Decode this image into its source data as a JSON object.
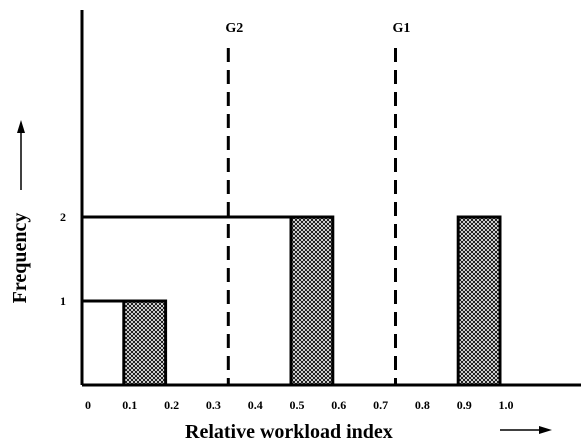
{
  "chart_data": {
    "type": "bar",
    "xlabel": "Relative workload index",
    "ylabel": "Frequency",
    "x_ticks": [
      "0",
      "0.1",
      "0.2",
      "0.3",
      "0.4",
      "0.5",
      "0.6",
      "0.7",
      "0.8",
      "0.9",
      "1.0"
    ],
    "y_ticks": [
      "1",
      "2"
    ],
    "xlim": [
      0,
      1.25
    ],
    "ylim": [
      0,
      4.6
    ],
    "bars": [
      {
        "x0": 0.1,
        "x1": 0.2,
        "value": 1,
        "pattern": "crosshatch"
      },
      {
        "x0": 0.5,
        "x1": 0.6,
        "value": 2,
        "pattern": "crosshatch"
      },
      {
        "x0": 0.9,
        "x1": 1.0,
        "value": 2,
        "pattern": "crosshatch"
      }
    ],
    "reference_lines": [
      {
        "label": "G2",
        "x": 0.35,
        "style": "dashed"
      },
      {
        "label": "G1",
        "x": 0.75,
        "style": "dashed"
      }
    ],
    "grid": false,
    "legend": "none",
    "arrows": [
      "x-axis-right",
      "y-axis-up"
    ]
  }
}
